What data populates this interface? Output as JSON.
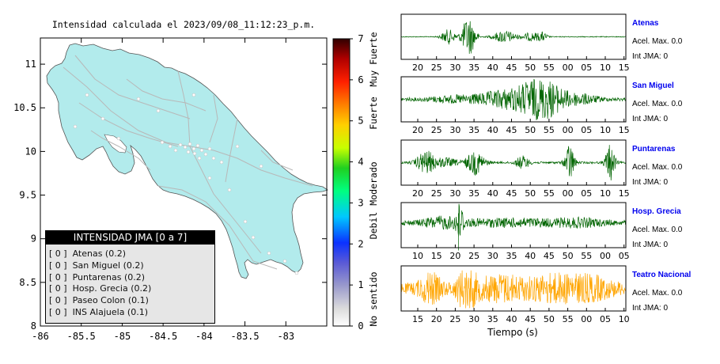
{
  "map": {
    "title": "Intensidad calculada el 2023/09/08_11:12:23_p.m.",
    "y_ticks": [
      "11",
      "10.5",
      "10",
      "9.5",
      "9",
      "8.5",
      "8"
    ],
    "x_ticks": [
      "-86",
      "-85.5",
      "-85",
      "-84.5",
      "-84",
      "-83.5",
      "-83"
    ],
    "xlim": [
      -86,
      -82.5
    ],
    "ylim": [
      8,
      11.3
    ],
    "land_color": "#b2ebec"
  },
  "colorbar": {
    "ticks": [
      "7",
      "6",
      "5",
      "4",
      "3",
      "2",
      "1",
      "0"
    ],
    "labels": [
      "Muy Fuerte",
      "Fuerte",
      "Moderado",
      "Debil",
      "No sentido"
    ]
  },
  "legend": {
    "title": "INTENSIDAD JMA [0 a 7]",
    "items": [
      "[ 0 ]  Atenas (0.2)",
      "[ 0 ]  San Miguel (0.2)",
      "[ 0 ]  Puntarenas (0.2)",
      "[ 0 ]  Hosp. Grecia (0.2)",
      "[ 0 ]  Paseo Colon (0.1)",
      "[ 0 ]  INS Alajuela (0.1)"
    ]
  },
  "chart_data": [
    {
      "type": "line",
      "station": "Atenas",
      "accel_label": "Acel. Max. 0.0",
      "int_label": "Int JMA: 0",
      "color": "#006400",
      "x_ticks": [
        "20",
        "25",
        "30",
        "35",
        "40",
        "45",
        "50",
        "55",
        "00",
        "05",
        "10",
        "15"
      ]
    },
    {
      "type": "line",
      "station": "San Miguel",
      "accel_label": "Acel. Max. 0.0",
      "int_label": "Int JMA: 0",
      "color": "#006400",
      "x_ticks": [
        "20",
        "25",
        "30",
        "35",
        "40",
        "45",
        "50",
        "55",
        "00",
        "05",
        "10",
        "15"
      ]
    },
    {
      "type": "line",
      "station": "Puntarenas",
      "accel_label": "Acel. Max. 0.0",
      "int_label": "Int JMA: 0",
      "color": "#006400",
      "x_ticks": [
        "20",
        "25",
        "30",
        "35",
        "40",
        "45",
        "50",
        "55",
        "00",
        "05",
        "10",
        "15"
      ]
    },
    {
      "type": "line",
      "station": "Hosp. Grecia",
      "accel_label": "Acel. Max. 0.0",
      "int_label": "Int JMA: 0",
      "color": "#006400",
      "x_ticks": [
        "10",
        "15",
        "20",
        "25",
        "30",
        "35",
        "40",
        "45",
        "50",
        "55",
        "00",
        "05"
      ]
    },
    {
      "type": "line",
      "station": "Teatro Nacional",
      "accel_label": "Acel. Max. 0.0",
      "int_label": "Int JMA: 0",
      "color": "#ffa500",
      "x_ticks": [
        "15",
        "20",
        "25",
        "30",
        "35",
        "40",
        "45",
        "50",
        "55",
        "00",
        "05",
        "10"
      ],
      "xlabel": "Tiempo (s)"
    }
  ],
  "colors": {
    "station_name": "#0000ee",
    "wave_green": "#006400",
    "wave_orange": "#ffa500"
  }
}
